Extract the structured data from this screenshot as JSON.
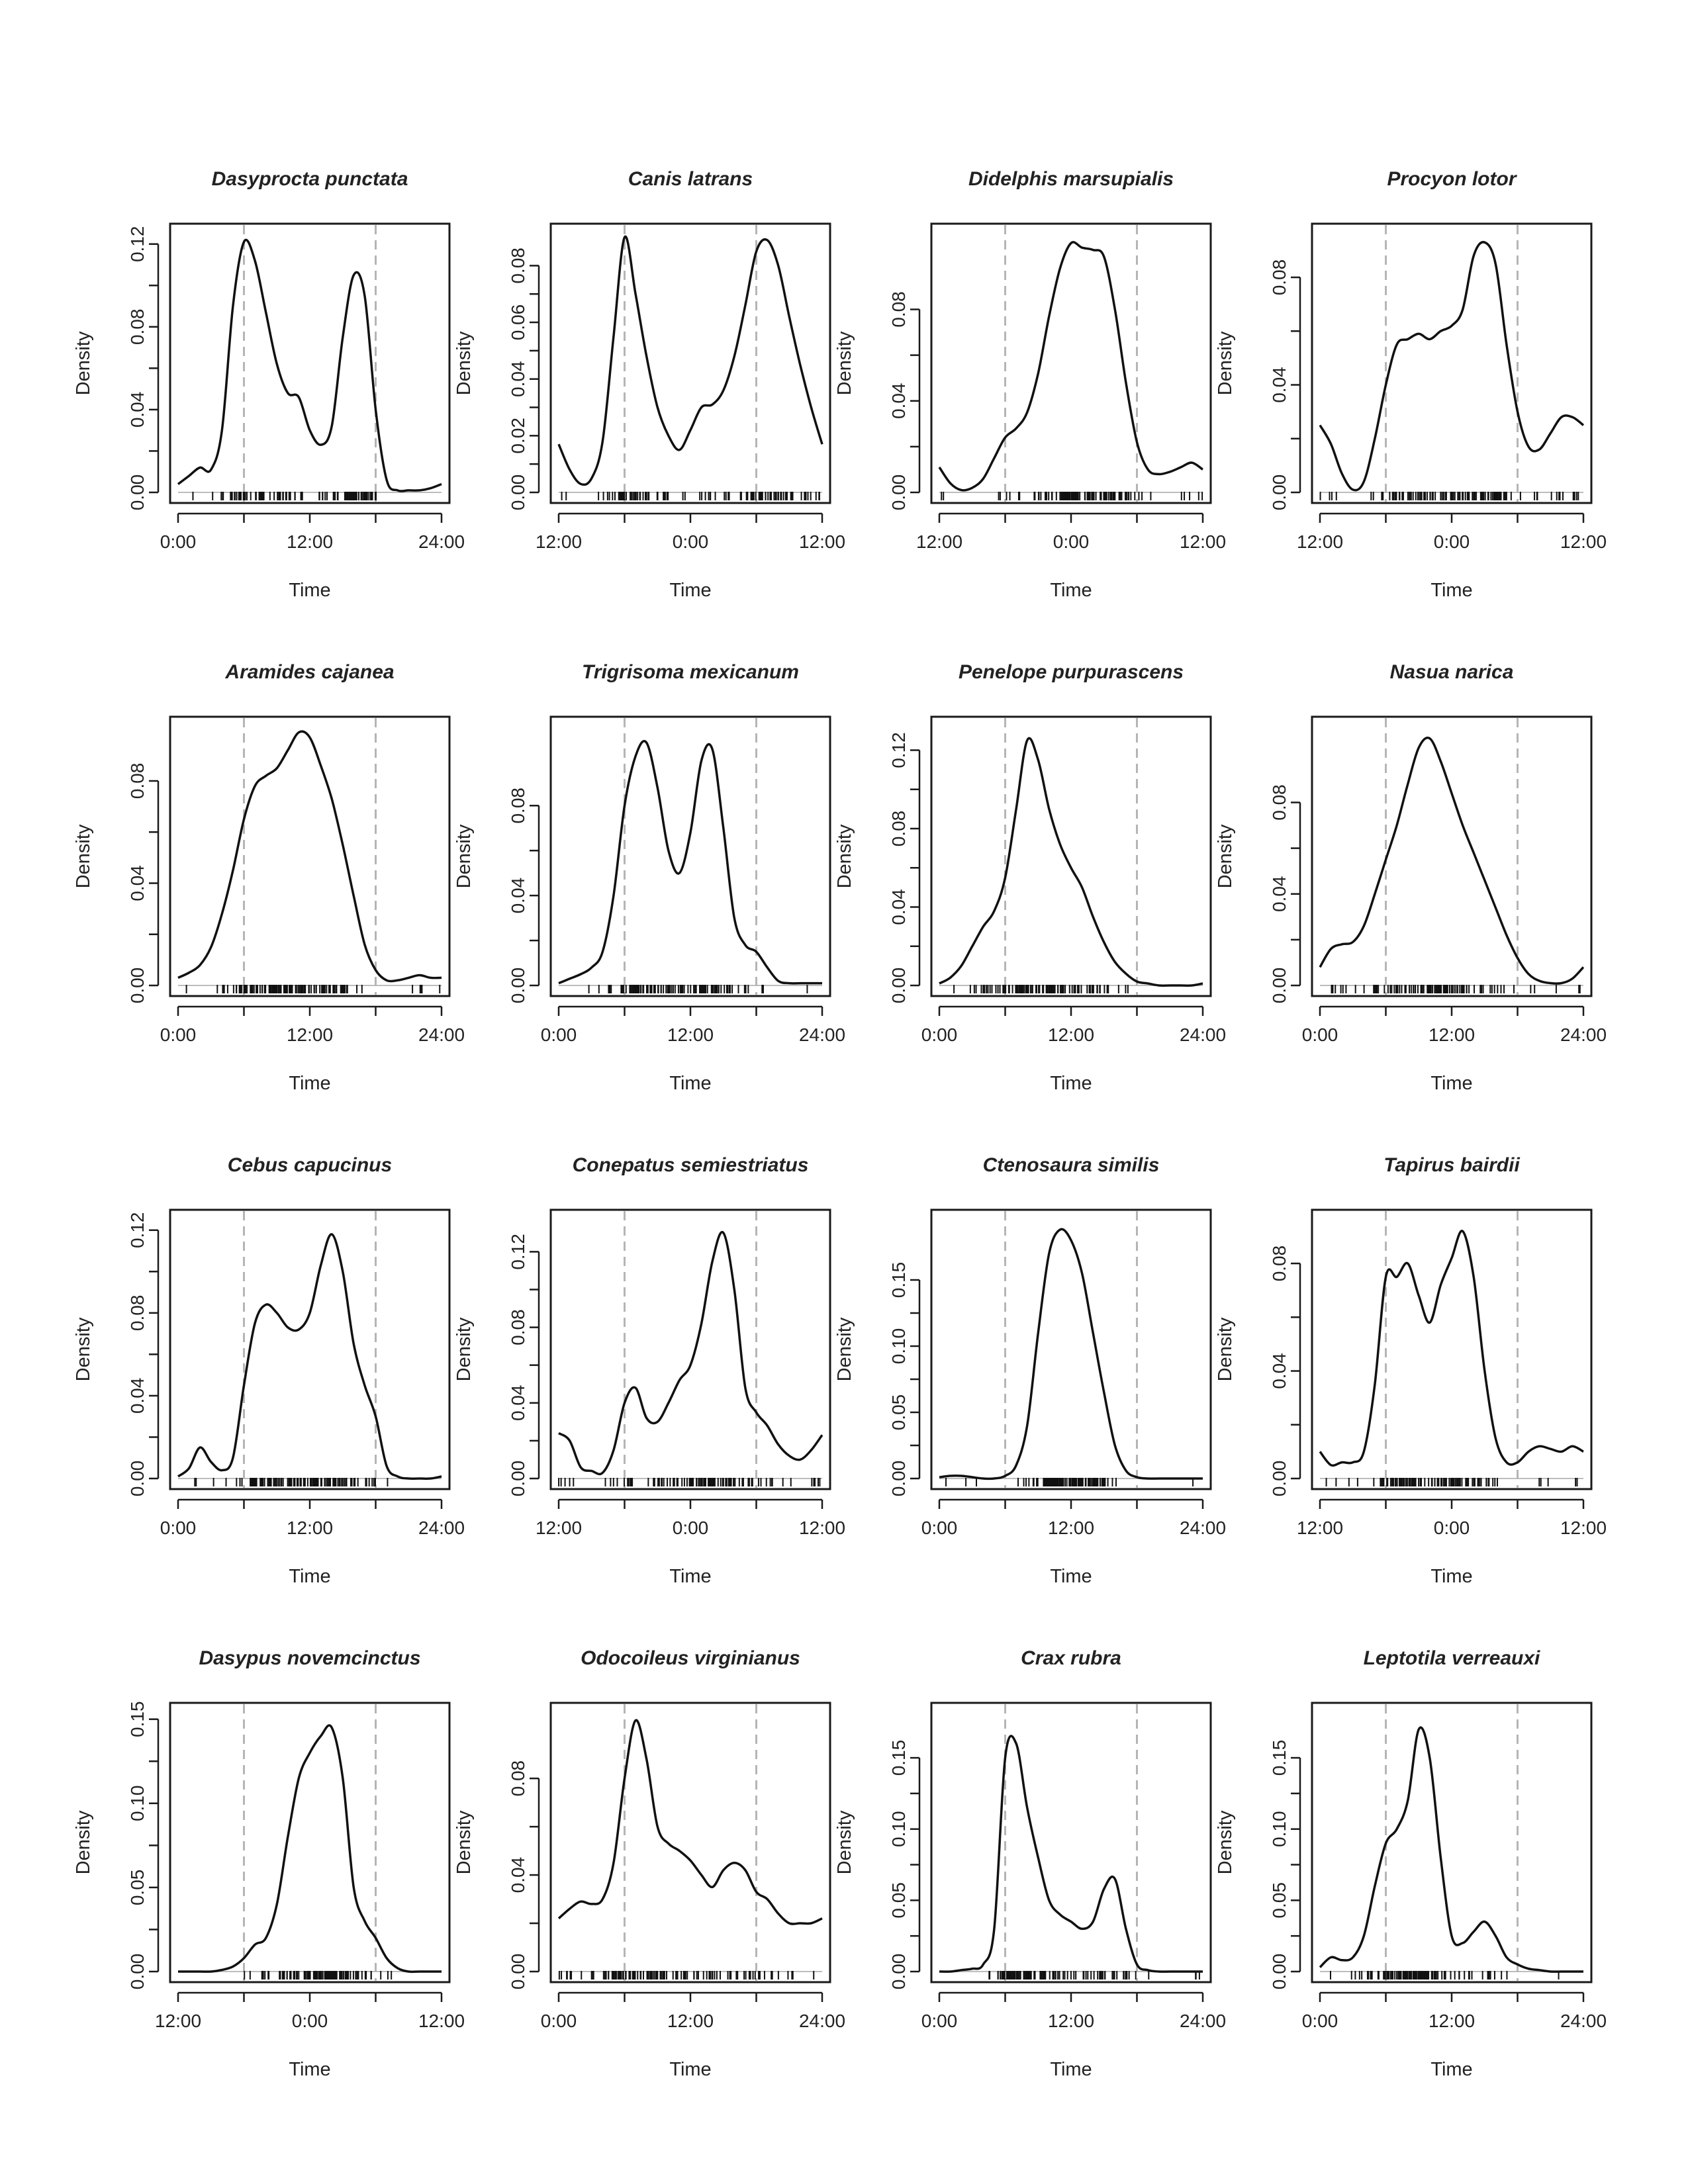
{
  "chart_data": [
    {
      "type": "line",
      "title": "Dasyprocta punctata",
      "xlabel": "Time",
      "ylabel": "Density",
      "xticks": [
        "0:00",
        "12:00",
        "24:00"
      ],
      "yticks": [
        "0.00",
        "0.04",
        "0.08",
        "0.12"
      ],
      "ylim": [
        0,
        0.126
      ],
      "vlines": [
        6,
        18
      ],
      "x": [
        0,
        1,
        2,
        3,
        4,
        5,
        6,
        7,
        8,
        9,
        10,
        11,
        12,
        13,
        14,
        15,
        16,
        17,
        18,
        19,
        20,
        21,
        22,
        23,
        24
      ],
      "values": [
        0.004,
        0.008,
        0.012,
        0.011,
        0.03,
        0.09,
        0.121,
        0.112,
        0.087,
        0.062,
        0.048,
        0.046,
        0.03,
        0.023,
        0.032,
        0.075,
        0.105,
        0.095,
        0.04,
        0.006,
        0.001,
        0.001,
        0.001,
        0.002,
        0.004
      ]
    },
    {
      "type": "line",
      "title": "Canis latrans",
      "xlabel": "Time",
      "ylabel": "Density",
      "xticks": [
        "12:00",
        "0:00",
        "12:00"
      ],
      "yticks": [
        "0.00",
        "0.02",
        "0.04",
        "0.06",
        "0.08"
      ],
      "ylim": [
        0,
        0.092
      ],
      "vlines": [
        6,
        18
      ],
      "x": [
        0,
        1,
        2,
        3,
        4,
        5,
        6,
        7,
        8,
        9,
        10,
        11,
        12,
        13,
        14,
        15,
        16,
        17,
        18,
        19,
        20,
        21,
        22,
        23,
        24
      ],
      "values": [
        0.017,
        0.008,
        0.003,
        0.005,
        0.018,
        0.055,
        0.09,
        0.07,
        0.048,
        0.03,
        0.02,
        0.015,
        0.022,
        0.03,
        0.031,
        0.036,
        0.048,
        0.066,
        0.085,
        0.089,
        0.08,
        0.062,
        0.045,
        0.03,
        0.017
      ]
    },
    {
      "type": "line",
      "title": "Didelphis marsupialis",
      "xlabel": "Time",
      "ylabel": "Density",
      "xticks": [
        "12:00",
        "0:00",
        "12:00"
      ],
      "yticks": [
        "0.00",
        "0.04",
        "0.08"
      ],
      "ylim": [
        0,
        0.114
      ],
      "vlines": [
        6,
        18
      ],
      "x": [
        0,
        1,
        2,
        3,
        4,
        5,
        6,
        7,
        8,
        9,
        10,
        11,
        12,
        13,
        14,
        15,
        16,
        17,
        18,
        19,
        20,
        21,
        22,
        23,
        24
      ],
      "values": [
        0.011,
        0.004,
        0.001,
        0.002,
        0.006,
        0.015,
        0.024,
        0.028,
        0.035,
        0.052,
        0.077,
        0.098,
        0.109,
        0.107,
        0.106,
        0.103,
        0.08,
        0.048,
        0.022,
        0.01,
        0.008,
        0.009,
        0.011,
        0.013,
        0.01
      ]
    },
    {
      "type": "line",
      "title": "Procyon lotor",
      "xlabel": "Time",
      "ylabel": "Density",
      "xticks": [
        "12:00",
        "0:00",
        "12:00"
      ],
      "yticks": [
        "0.00",
        "0.04",
        "0.08"
      ],
      "ylim": [
        0,
        0.097
      ],
      "vlines": [
        6,
        18
      ],
      "x": [
        0,
        1,
        2,
        3,
        4,
        5,
        6,
        7,
        8,
        9,
        10,
        11,
        12,
        13,
        14,
        15,
        16,
        17,
        18,
        19,
        20,
        21,
        22,
        23,
        24
      ],
      "values": [
        0.025,
        0.018,
        0.007,
        0.001,
        0.004,
        0.02,
        0.04,
        0.055,
        0.057,
        0.059,
        0.057,
        0.06,
        0.062,
        0.068,
        0.088,
        0.093,
        0.085,
        0.055,
        0.03,
        0.017,
        0.016,
        0.022,
        0.028,
        0.028,
        0.025
      ]
    },
    {
      "type": "line",
      "title": "Aramides cajanea",
      "xlabel": "Time",
      "ylabel": "Density",
      "xticks": [
        "0:00",
        "12:00",
        "24:00"
      ],
      "yticks": [
        "0.00",
        "0.04",
        "0.08"
      ],
      "ylim": [
        0,
        0.102
      ],
      "vlines": [
        6,
        18
      ],
      "x": [
        0,
        1,
        2,
        3,
        4,
        5,
        6,
        7,
        8,
        9,
        10,
        11,
        12,
        13,
        14,
        15,
        16,
        17,
        18,
        19,
        20,
        21,
        22,
        23,
        24
      ],
      "values": [
        0.003,
        0.005,
        0.008,
        0.015,
        0.028,
        0.045,
        0.065,
        0.078,
        0.082,
        0.085,
        0.092,
        0.099,
        0.097,
        0.086,
        0.073,
        0.055,
        0.035,
        0.016,
        0.006,
        0.002,
        0.002,
        0.003,
        0.004,
        0.003,
        0.003
      ]
    },
    {
      "type": "line",
      "title": "Trigrisoma mexicanum",
      "xlabel": "Time",
      "ylabel": "Density",
      "xticks": [
        "0:00",
        "12:00",
        "24:00"
      ],
      "yticks": [
        "0.00",
        "0.04",
        "0.08"
      ],
      "ylim": [
        0,
        0.116
      ],
      "vlines": [
        6,
        18
      ],
      "x": [
        0,
        1,
        2,
        3,
        4,
        5,
        6,
        7,
        8,
        9,
        10,
        11,
        12,
        13,
        14,
        15,
        16,
        17,
        18,
        19,
        20,
        21,
        22,
        23,
        24
      ],
      "values": [
        0.001,
        0.003,
        0.005,
        0.008,
        0.015,
        0.04,
        0.08,
        0.102,
        0.108,
        0.088,
        0.06,
        0.05,
        0.068,
        0.1,
        0.105,
        0.07,
        0.03,
        0.018,
        0.015,
        0.008,
        0.002,
        0.001,
        0.001,
        0.001,
        0.001
      ]
    },
    {
      "type": "line",
      "title": "Penelope purpurascens",
      "xlabel": "Time",
      "ylabel": "Density",
      "xticks": [
        "0:00",
        "12:00",
        "24:00"
      ],
      "yticks": [
        "0.00",
        "0.04",
        "0.08",
        "0.12"
      ],
      "ylim": [
        0,
        0.133
      ],
      "vlines": [
        6,
        18
      ],
      "x": [
        0,
        1,
        2,
        3,
        4,
        5,
        6,
        7,
        8,
        9,
        10,
        11,
        12,
        13,
        14,
        15,
        16,
        17,
        18,
        19,
        20,
        21,
        22,
        23,
        24
      ],
      "values": [
        0.001,
        0.004,
        0.01,
        0.02,
        0.03,
        0.038,
        0.055,
        0.09,
        0.125,
        0.115,
        0.09,
        0.072,
        0.06,
        0.05,
        0.035,
        0.022,
        0.012,
        0.006,
        0.002,
        0.001,
        0.0,
        0.0,
        0.0,
        0.0,
        0.001
      ]
    },
    {
      "type": "line",
      "title": "Nasua narica",
      "xlabel": "Time",
      "ylabel": "Density",
      "xticks": [
        "0:00",
        "12:00",
        "24:00"
      ],
      "yticks": [
        "0.00",
        "0.04",
        "0.08"
      ],
      "ylim": [
        0,
        0.114
      ],
      "vlines": [
        6,
        18
      ],
      "x": [
        0,
        1,
        2,
        3,
        4,
        5,
        6,
        7,
        8,
        9,
        10,
        11,
        12,
        13,
        14,
        15,
        16,
        17,
        18,
        19,
        20,
        21,
        22,
        23,
        24
      ],
      "values": [
        0.008,
        0.016,
        0.018,
        0.019,
        0.026,
        0.04,
        0.055,
        0.07,
        0.088,
        0.104,
        0.108,
        0.098,
        0.084,
        0.07,
        0.058,
        0.046,
        0.034,
        0.022,
        0.012,
        0.005,
        0.002,
        0.001,
        0.001,
        0.003,
        0.008
      ]
    },
    {
      "type": "line",
      "title": "Cebus capucinus",
      "xlabel": "Time",
      "ylabel": "Density",
      "xticks": [
        "0:00",
        "12:00",
        "24:00"
      ],
      "yticks": [
        "0.00",
        "0.04",
        "0.08",
        "0.12"
      ],
      "ylim": [
        0,
        0.126
      ],
      "vlines": [
        6,
        18
      ],
      "x": [
        0,
        1,
        2,
        3,
        4,
        5,
        6,
        7,
        8,
        9,
        10,
        11,
        12,
        13,
        14,
        15,
        16,
        17,
        18,
        19,
        20,
        21,
        22,
        23,
        24
      ],
      "values": [
        0.001,
        0.005,
        0.015,
        0.008,
        0.004,
        0.01,
        0.045,
        0.075,
        0.084,
        0.08,
        0.073,
        0.072,
        0.08,
        0.103,
        0.118,
        0.1,
        0.065,
        0.045,
        0.03,
        0.006,
        0.001,
        0.0,
        0.0,
        0.0,
        0.001
      ]
    },
    {
      "type": "line",
      "title": "Conepatus semiestriatus",
      "xlabel": "Time",
      "ylabel": "Density",
      "xticks": [
        "12:00",
        "0:00",
        "12:00"
      ],
      "yticks": [
        "0.00",
        "0.04",
        "0.08",
        "0.12"
      ],
      "ylim": [
        0,
        0.138
      ],
      "vlines": [
        6,
        18
      ],
      "x": [
        0,
        1,
        2,
        3,
        4,
        5,
        6,
        7,
        8,
        9,
        10,
        11,
        12,
        13,
        14,
        15,
        16,
        17,
        18,
        19,
        20,
        21,
        22,
        23,
        24
      ],
      "values": [
        0.024,
        0.02,
        0.006,
        0.004,
        0.003,
        0.015,
        0.04,
        0.048,
        0.032,
        0.03,
        0.04,
        0.052,
        0.06,
        0.082,
        0.115,
        0.13,
        0.1,
        0.048,
        0.035,
        0.028,
        0.018,
        0.012,
        0.01,
        0.015,
        0.023
      ]
    },
    {
      "type": "line",
      "title": "Ctenosaura similis",
      "xlabel": "Time",
      "ylabel": "Density",
      "xticks": [
        "0:00",
        "12:00",
        "24:00"
      ],
      "yticks": [
        "0.00",
        "0.05",
        "0.10",
        "0.15"
      ],
      "ylim": [
        0,
        0.197
      ],
      "vlines": [
        6,
        18
      ],
      "x": [
        0,
        1,
        2,
        3,
        4,
        5,
        6,
        7,
        8,
        9,
        10,
        11,
        12,
        13,
        14,
        15,
        16,
        17,
        18,
        19,
        20,
        21,
        22,
        23,
        24
      ],
      "values": [
        0.001,
        0.002,
        0.002,
        0.001,
        0.0,
        0.0,
        0.002,
        0.01,
        0.04,
        0.11,
        0.17,
        0.188,
        0.18,
        0.155,
        0.11,
        0.065,
        0.025,
        0.006,
        0.001,
        0.0,
        0.0,
        0.0,
        0.0,
        0.0,
        0.0
      ]
    },
    {
      "type": "line",
      "title": "Tapirus bairdii",
      "xlabel": "Time",
      "ylabel": "Density",
      "xticks": [
        "12:00",
        "0:00",
        "12:00"
      ],
      "yticks": [
        "0.00",
        "0.04",
        "0.08"
      ],
      "ylim": [
        0,
        0.097
      ],
      "vlines": [
        6,
        18
      ],
      "x": [
        0,
        1,
        2,
        3,
        4,
        5,
        6,
        7,
        8,
        9,
        10,
        11,
        12,
        13,
        14,
        15,
        16,
        17,
        18,
        19,
        20,
        21,
        22,
        23,
        24
      ],
      "values": [
        0.01,
        0.005,
        0.006,
        0.006,
        0.01,
        0.035,
        0.075,
        0.075,
        0.08,
        0.068,
        0.058,
        0.072,
        0.082,
        0.092,
        0.075,
        0.04,
        0.015,
        0.006,
        0.006,
        0.01,
        0.012,
        0.011,
        0.01,
        0.012,
        0.01
      ]
    },
    {
      "type": "line",
      "title": "Dasypus novemcinctus",
      "xlabel": "Time",
      "ylabel": "Density",
      "xticks": [
        "12:00",
        "0:00",
        "12:00"
      ],
      "yticks": [
        "0.00",
        "0.05",
        "0.10",
        "0.15"
      ],
      "ylim": [
        0,
        0.155
      ],
      "vlines": [
        6,
        18
      ],
      "x": [
        0,
        1,
        2,
        3,
        4,
        5,
        6,
        7,
        8,
        9,
        10,
        11,
        12,
        13,
        14,
        15,
        16,
        17,
        18,
        19,
        20,
        21,
        22,
        23,
        24
      ],
      "values": [
        0.0,
        0.0,
        0.0,
        0.0,
        0.001,
        0.003,
        0.008,
        0.016,
        0.02,
        0.04,
        0.08,
        0.115,
        0.13,
        0.14,
        0.145,
        0.115,
        0.05,
        0.03,
        0.02,
        0.008,
        0.002,
        0.0,
        0.0,
        0.0,
        0.0
      ]
    },
    {
      "type": "line",
      "title": "Odocoileus virginianus",
      "xlabel": "Time",
      "ylabel": "Density",
      "xticks": [
        "0:00",
        "12:00",
        "24:00"
      ],
      "yticks": [
        "0.00",
        "0.04",
        "0.08"
      ],
      "ylim": [
        0,
        0.108
      ],
      "vlines": [
        6,
        18
      ],
      "x": [
        0,
        1,
        2,
        3,
        4,
        5,
        6,
        7,
        8,
        9,
        10,
        11,
        12,
        13,
        14,
        15,
        16,
        17,
        18,
        19,
        20,
        21,
        22,
        23,
        24
      ],
      "values": [
        0.022,
        0.026,
        0.029,
        0.028,
        0.03,
        0.045,
        0.08,
        0.104,
        0.088,
        0.06,
        0.053,
        0.05,
        0.046,
        0.04,
        0.035,
        0.042,
        0.045,
        0.042,
        0.033,
        0.03,
        0.024,
        0.02,
        0.02,
        0.02,
        0.022
      ]
    },
    {
      "type": "line",
      "title": "Crax rubra",
      "xlabel": "Time",
      "ylabel": "Density",
      "xticks": [
        "0:00",
        "12:00",
        "24:00"
      ],
      "yticks": [
        "0.00",
        "0.05",
        "0.10",
        "0.15"
      ],
      "ylim": [
        0,
        0.183
      ],
      "vlines": [
        6,
        18
      ],
      "x": [
        0,
        1,
        2,
        3,
        4,
        5,
        6,
        7,
        8,
        9,
        10,
        11,
        12,
        13,
        14,
        15,
        16,
        17,
        18,
        19,
        20,
        21,
        22,
        23,
        24
      ],
      "values": [
        0.0,
        0.0,
        0.001,
        0.002,
        0.005,
        0.03,
        0.15,
        0.16,
        0.115,
        0.08,
        0.05,
        0.04,
        0.035,
        0.03,
        0.035,
        0.058,
        0.065,
        0.03,
        0.005,
        0.001,
        0.0,
        0.0,
        0.0,
        0.0,
        0.0
      ]
    },
    {
      "type": "line",
      "title": "Leptotila verreauxi",
      "xlabel": "Time",
      "ylabel": "Density",
      "xticks": [
        "0:00",
        "12:00",
        "24:00"
      ],
      "yticks": [
        "0.00",
        "0.05",
        "0.10",
        "0.15"
      ],
      "ylim": [
        0,
        0.183
      ],
      "vlines": [
        6,
        18
      ],
      "x": [
        0,
        1,
        2,
        3,
        4,
        5,
        6,
        7,
        8,
        9,
        10,
        11,
        12,
        13,
        14,
        15,
        16,
        17,
        18,
        19,
        20,
        21,
        22,
        23,
        24
      ],
      "values": [
        0.003,
        0.01,
        0.008,
        0.01,
        0.025,
        0.06,
        0.09,
        0.1,
        0.12,
        0.17,
        0.15,
        0.08,
        0.025,
        0.02,
        0.028,
        0.035,
        0.025,
        0.01,
        0.005,
        0.002,
        0.001,
        0.0,
        0.0,
        0.0,
        0.0
      ]
    }
  ]
}
